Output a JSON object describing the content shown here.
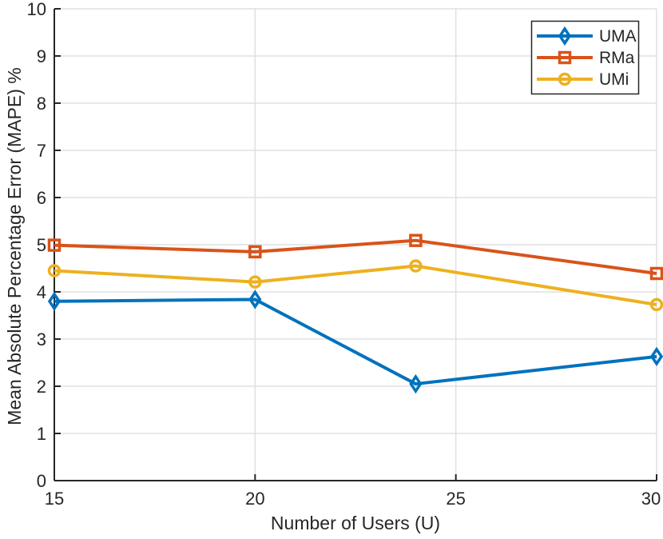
{
  "chart_data": {
    "type": "line",
    "title": "",
    "xlabel": "Number of Users (U)",
    "ylabel": "Mean Absolute Percentage Error (MAPE) %",
    "x": [
      15,
      20,
      24,
      30
    ],
    "series": [
      {
        "name": "UMA",
        "values": [
          3.8,
          3.84,
          2.05,
          2.63
        ],
        "color": "#0072BD",
        "marker": "diamond"
      },
      {
        "name": "RMa",
        "values": [
          4.99,
          4.85,
          5.09,
          4.39
        ],
        "color": "#D95319",
        "marker": "square"
      },
      {
        "name": "UMi",
        "values": [
          4.45,
          4.21,
          4.55,
          3.73
        ],
        "color": "#EDB120",
        "marker": "circle"
      }
    ],
    "xlim": [
      15,
      30
    ],
    "ylim": [
      0,
      10
    ],
    "xticks": [
      15,
      20,
      25,
      30
    ],
    "yticks": [
      0,
      1,
      2,
      3,
      4,
      5,
      6,
      7,
      8,
      9,
      10
    ],
    "grid": true,
    "legend_position": "top-right",
    "colors": {
      "axis": "#262626",
      "grid": "#E0E0E0",
      "background": "#FFFFFF",
      "legend_border": "#262626"
    }
  }
}
